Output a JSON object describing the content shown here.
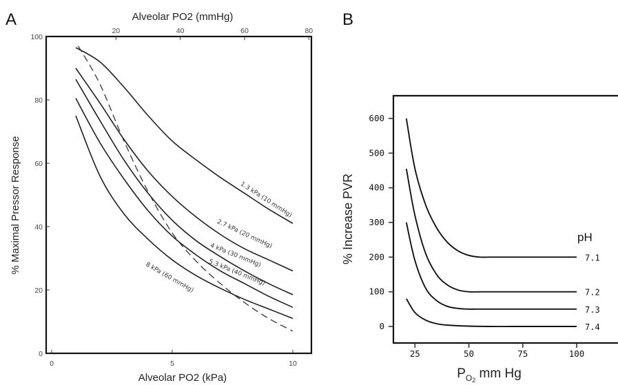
{
  "panels": {
    "a_letter": "A",
    "b_letter": "B"
  },
  "chart_data": [
    {
      "type": "line",
      "panel": "A",
      "xlabel": "Alveolar PO2 (kPa)",
      "x2label": "Alveolar PO2 (mmHg)",
      "ylabel": "% Maximal Pressor Response",
      "xlim": [
        0,
        10.5
      ],
      "ylim": [
        0,
        100
      ],
      "xticks": [
        0,
        5,
        10
      ],
      "x2ticks": [
        20,
        40,
        60,
        80
      ],
      "yticks": [
        0,
        20,
        40,
        60,
        80,
        100
      ],
      "grid": false,
      "series": [
        {
          "name": "1.3 kPa (10 mmHg)",
          "x": [
            1,
            2,
            3,
            4,
            5,
            6,
            7,
            8,
            9,
            10
          ],
          "y": [
            96.5,
            92,
            84,
            75,
            67,
            61,
            55.5,
            50.5,
            45.5,
            41
          ]
        },
        {
          "name": "2.7 kPa (20 mmHg)",
          "x": [
            1,
            2,
            3,
            4,
            5,
            6,
            7,
            8,
            9,
            10
          ],
          "y": [
            90,
            79,
            67.5,
            57.5,
            49.5,
            43,
            37.5,
            33,
            29.5,
            26
          ]
        },
        {
          "name": "4 kPa (30 mmHg)",
          "x": [
            1,
            2,
            3,
            4,
            5,
            6,
            7,
            8,
            9,
            10
          ],
          "y": [
            86.5,
            73.5,
            61,
            50.5,
            42,
            35.5,
            30.5,
            26,
            22,
            18.5
          ]
        },
        {
          "name": "5.3 kPa (40 mmHg)",
          "x": [
            1,
            2,
            3,
            4,
            5,
            6,
            7,
            8,
            9,
            10
          ],
          "y": [
            80.5,
            66.5,
            55,
            45,
            37,
            31,
            26,
            22,
            18,
            14.5
          ]
        },
        {
          "name": "8 kPa (60 mmHg)",
          "x": [
            1,
            2,
            3,
            4,
            5,
            6,
            7,
            8,
            9,
            10
          ],
          "y": [
            75,
            56,
            44,
            36,
            29.5,
            24.5,
            20.5,
            17,
            14,
            11
          ]
        },
        {
          "x": [
            1.1,
            2,
            3,
            4,
            5,
            6,
            7,
            8,
            9,
            10
          ],
          "y": [
            97,
            85,
            67,
            51,
            38,
            29,
            22,
            16,
            11,
            7
          ],
          "style": "dashed"
        }
      ]
    },
    {
      "type": "line",
      "panel": "B",
      "xlabel": "PO2 mm Hg",
      "ylabel": "% Increase PVR",
      "legend_title": "pH",
      "xlim": [
        15,
        102
      ],
      "ylim": [
        -45,
        650
      ],
      "xticks": [
        25,
        50,
        75,
        100
      ],
      "yticks": [
        0,
        100,
        200,
        300,
        400,
        500,
        600
      ],
      "grid": false,
      "series": [
        {
          "name": "7.1",
          "x": [
            21,
            25,
            30,
            35,
            40,
            45,
            50,
            55,
            60,
            70,
            80,
            90,
            100
          ],
          "y": [
            600,
            455,
            350,
            285,
            243,
            218,
            205,
            200,
            200,
            200,
            200,
            200,
            200
          ]
        },
        {
          "name": "7.2",
          "x": [
            21,
            25,
            30,
            35,
            40,
            45,
            50,
            55,
            60,
            70,
            80,
            90,
            100
          ],
          "y": [
            455,
            320,
            210,
            150,
            120,
            105,
            100,
            100,
            100,
            100,
            100,
            100,
            100
          ]
        },
        {
          "name": "7.3",
          "x": [
            21,
            25,
            30,
            35,
            40,
            45,
            50,
            55,
            60,
            70,
            80,
            90,
            100
          ],
          "y": [
            300,
            190,
            110,
            75,
            58,
            52,
            50,
            50,
            50,
            50,
            50,
            50,
            50
          ]
        },
        {
          "name": "7.4",
          "x": [
            21,
            25,
            30,
            35,
            40,
            50,
            60,
            70,
            80,
            90,
            100
          ],
          "y": [
            80,
            40,
            18,
            8,
            4,
            1,
            0,
            0,
            0,
            0,
            0
          ]
        }
      ]
    }
  ]
}
